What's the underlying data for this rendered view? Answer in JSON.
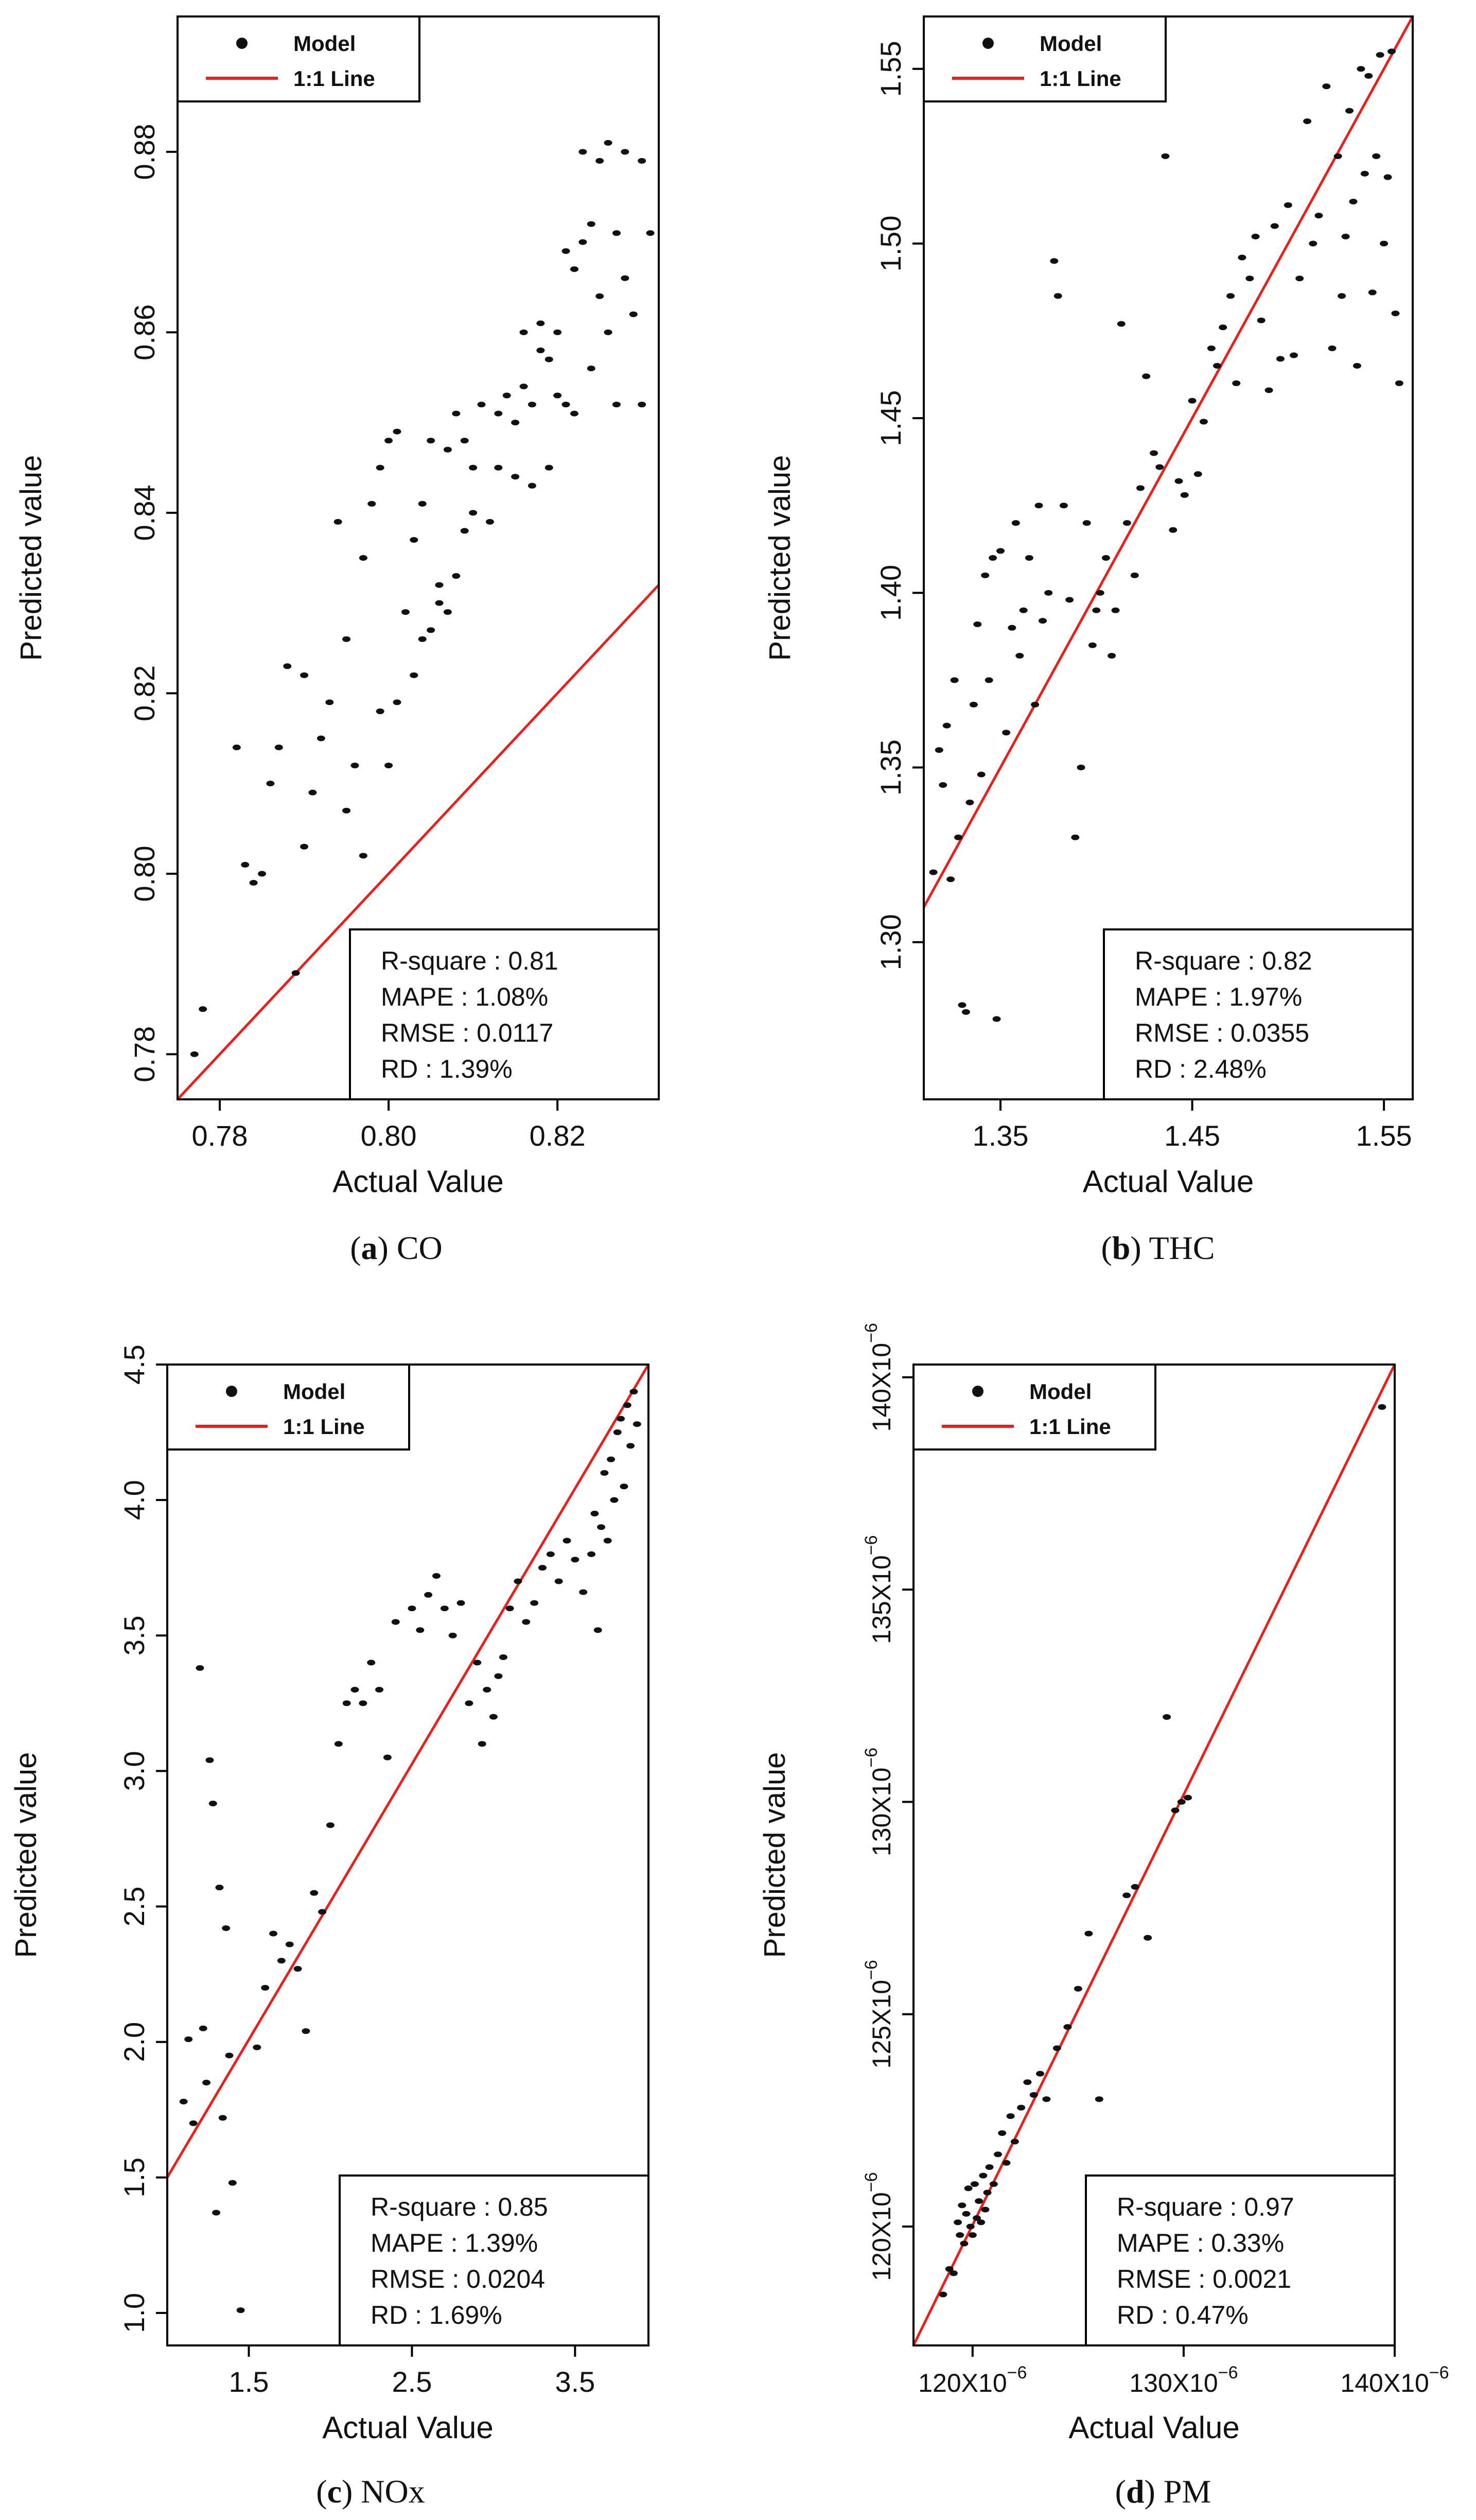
{
  "figure": {
    "colors": {
      "point": "#111111",
      "line": "#e8201c",
      "frame": "#000000",
      "background": "#ffffff"
    }
  },
  "chart_data": [
    {
      "id": "a",
      "type": "scatter",
      "caption_letter": "a",
      "caption_text": " CO",
      "xlabel": "Actual Value",
      "ylabel": "Predicted value",
      "xlim": [
        0.775,
        0.832
      ],
      "ylim": [
        0.775,
        0.895
      ],
      "xticks": [
        0.78,
        0.8,
        0.82
      ],
      "xtick_labels": [
        "0.78",
        "0.80",
        "0.82"
      ],
      "yticks": [
        0.78,
        0.8,
        0.82,
        0.84,
        0.86,
        0.88
      ],
      "ytick_labels": [
        "0.78",
        "0.80",
        "0.82",
        "0.84",
        "0.86",
        "0.88"
      ],
      "legend": {
        "position": "top-left",
        "entries": [
          {
            "label": "Model",
            "kind": "point"
          },
          {
            "label": "1:1 Line",
            "kind": "line"
          }
        ]
      },
      "stats": [
        "R-square : 0.81",
        "MAPE : 1.08%",
        "RMSE : 0.0117",
        "RD : 1.39%"
      ],
      "series": [
        {
          "name": "1:1 Line",
          "kind": "line",
          "x": [
            0.775,
            0.832
          ],
          "y": [
            0.775,
            0.832
          ]
        },
        {
          "name": "Model",
          "kind": "scatter",
          "x": [
            0.777,
            0.778,
            0.782,
            0.783,
            0.784,
            0.785,
            0.786,
            0.787,
            0.788,
            0.789,
            0.79,
            0.79,
            0.791,
            0.792,
            0.793,
            0.794,
            0.795,
            0.795,
            0.796,
            0.797,
            0.797,
            0.798,
            0.799,
            0.799,
            0.8,
            0.8,
            0.801,
            0.801,
            0.802,
            0.803,
            0.803,
            0.804,
            0.804,
            0.805,
            0.805,
            0.806,
            0.806,
            0.807,
            0.807,
            0.808,
            0.808,
            0.809,
            0.809,
            0.81,
            0.81,
            0.811,
            0.812,
            0.813,
            0.813,
            0.814,
            0.815,
            0.815,
            0.816,
            0.816,
            0.817,
            0.817,
            0.818,
            0.818,
            0.819,
            0.819,
            0.82,
            0.82,
            0.821,
            0.821,
            0.822,
            0.822,
            0.823,
            0.823,
            0.824,
            0.824,
            0.825,
            0.825,
            0.826,
            0.826,
            0.827,
            0.827,
            0.828,
            0.828,
            0.829,
            0.83,
            0.83,
            0.831
          ],
          "y": [
            0.78,
            0.785,
            0.814,
            0.801,
            0.799,
            0.8,
            0.81,
            0.814,
            0.823,
            0.789,
            0.803,
            0.822,
            0.809,
            0.815,
            0.819,
            0.839,
            0.807,
            0.826,
            0.812,
            0.802,
            0.835,
            0.841,
            0.818,
            0.845,
            0.812,
            0.848,
            0.819,
            0.849,
            0.829,
            0.822,
            0.837,
            0.826,
            0.841,
            0.827,
            0.848,
            0.83,
            0.832,
            0.829,
            0.847,
            0.833,
            0.851,
            0.838,
            0.848,
            0.84,
            0.845,
            0.852,
            0.839,
            0.845,
            0.851,
            0.853,
            0.844,
            0.85,
            0.854,
            0.86,
            0.843,
            0.852,
            0.858,
            0.861,
            0.857,
            0.845,
            0.86,
            0.853,
            0.852,
            0.869,
            0.851,
            0.867,
            0.88,
            0.87,
            0.856,
            0.872,
            0.879,
            0.864,
            0.86,
            0.881,
            0.871,
            0.852,
            0.88,
            0.866,
            0.862,
            0.879,
            0.852,
            0.871
          ]
        }
      ]
    },
    {
      "id": "b",
      "type": "scatter",
      "caption_letter": "b",
      "caption_text": " THC",
      "xlabel": "Actual Value",
      "ylabel": "Predicted value",
      "xlim": [
        1.31,
        1.565
      ],
      "ylim": [
        1.255,
        1.565
      ],
      "xticks": [
        1.35,
        1.45,
        1.55
      ],
      "xtick_labels": [
        "1.35",
        "1.45",
        "1.55"
      ],
      "yticks": [
        1.3,
        1.35,
        1.4,
        1.45,
        1.5,
        1.55
      ],
      "ytick_labels": [
        "1.30",
        "1.35",
        "1.40",
        "1.45",
        "1.50",
        "1.55"
      ],
      "legend": {
        "position": "top-left",
        "entries": [
          {
            "label": "Model",
            "kind": "point"
          },
          {
            "label": "1:1 Line",
            "kind": "line"
          }
        ]
      },
      "stats": [
        "R-square : 0.82",
        "MAPE : 1.97%",
        "RMSE : 0.0355",
        "RD : 2.48%"
      ],
      "series": [
        {
          "name": "1:1 Line",
          "kind": "line",
          "x": [
            1.31,
            1.565
          ],
          "y": [
            1.31,
            1.565
          ]
        },
        {
          "name": "Model",
          "kind": "scatter",
          "x": [
            1.315,
            1.318,
            1.32,
            1.322,
            1.324,
            1.326,
            1.328,
            1.33,
            1.332,
            1.334,
            1.336,
            1.338,
            1.34,
            1.342,
            1.344,
            1.346,
            1.348,
            1.35,
            1.353,
            1.356,
            1.358,
            1.36,
            1.362,
            1.365,
            1.368,
            1.37,
            1.372,
            1.375,
            1.378,
            1.38,
            1.383,
            1.386,
            1.389,
            1.392,
            1.395,
            1.398,
            1.4,
            1.402,
            1.405,
            1.408,
            1.41,
            1.413,
            1.416,
            1.42,
            1.423,
            1.426,
            1.43,
            1.433,
            1.436,
            1.44,
            1.443,
            1.446,
            1.45,
            1.453,
            1.456,
            1.46,
            1.463,
            1.466,
            1.47,
            1.473,
            1.476,
            1.48,
            1.483,
            1.486,
            1.49,
            1.493,
            1.496,
            1.5,
            1.503,
            1.506,
            1.51,
            1.513,
            1.516,
            1.52,
            1.523,
            1.526,
            1.528,
            1.53,
            1.532,
            1.534,
            1.536,
            1.538,
            1.54,
            1.542,
            1.544,
            1.546,
            1.548,
            1.55,
            1.552,
            1.554,
            1.556,
            1.558
          ],
          "y": [
            1.32,
            1.355,
            1.345,
            1.362,
            1.318,
            1.375,
            1.33,
            1.282,
            1.28,
            1.34,
            1.368,
            1.391,
            1.348,
            1.405,
            1.375,
            1.41,
            1.278,
            1.412,
            1.36,
            1.39,
            1.42,
            1.382,
            1.395,
            1.41,
            1.368,
            1.425,
            1.392,
            1.4,
            1.495,
            1.485,
            1.425,
            1.398,
            1.33,
            1.35,
            1.42,
            1.385,
            1.395,
            1.4,
            1.41,
            1.382,
            1.395,
            1.477,
            1.42,
            1.405,
            1.43,
            1.462,
            1.44,
            1.436,
            1.525,
            1.418,
            1.432,
            1.428,
            1.455,
            1.434,
            1.449,
            1.47,
            1.465,
            1.476,
            1.485,
            1.46,
            1.496,
            1.49,
            1.502,
            1.478,
            1.458,
            1.505,
            1.467,
            1.511,
            1.468,
            1.49,
            1.535,
            1.5,
            1.508,
            1.545,
            1.47,
            1.525,
            1.485,
            1.502,
            1.538,
            1.512,
            1.465,
            1.55,
            1.52,
            1.548,
            1.486,
            1.525,
            1.554,
            1.5,
            1.519,
            1.555,
            1.48,
            1.46
          ]
        }
      ]
    },
    {
      "id": "c",
      "type": "scatter",
      "caption_letter": "c",
      "caption_text": " NOx",
      "xlabel": "Actual Value",
      "ylabel": "Predicted value",
      "xlim": [
        1.0,
        3.95
      ],
      "ylim": [
        0.88,
        4.5
      ],
      "xticks": [
        1.5,
        2.5,
        3.5
      ],
      "xtick_labels": [
        "1.5",
        "2.5",
        "3.5"
      ],
      "yticks": [
        1.0,
        1.5,
        2.0,
        2.5,
        3.0,
        3.5,
        4.0,
        4.5
      ],
      "ytick_labels": [
        "1.0",
        "1.5",
        "2.0",
        "2.5",
        "3.0",
        "3.5",
        "4.0",
        "4.5"
      ],
      "legend": {
        "position": "top-left",
        "entries": [
          {
            "label": "Model",
            "kind": "point"
          },
          {
            "label": "1:1 Line",
            "kind": "line"
          }
        ]
      },
      "stats": [
        "R-square : 0.85",
        "MAPE : 1.39%",
        "RMSE : 0.0204",
        "RD : 1.69%"
      ],
      "series": [
        {
          "name": "1:1 Line",
          "kind": "line",
          "x": [
            1.0,
            3.95
          ],
          "y": [
            1.5,
            4.5
          ]
        },
        {
          "name": "Model",
          "kind": "scatter",
          "x": [
            1.1,
            1.13,
            1.16,
            1.2,
            1.22,
            1.24,
            1.26,
            1.28,
            1.3,
            1.32,
            1.34,
            1.36,
            1.38,
            1.4,
            1.45,
            1.55,
            1.6,
            1.65,
            1.7,
            1.75,
            1.8,
            1.85,
            1.9,
            1.95,
            2.0,
            2.05,
            2.1,
            2.15,
            2.2,
            2.25,
            2.3,
            2.35,
            2.4,
            2.5,
            2.55,
            2.6,
            2.65,
            2.7,
            2.75,
            2.8,
            2.85,
            2.9,
            2.93,
            2.96,
            3.0,
            3.03,
            3.06,
            3.1,
            3.15,
            3.2,
            3.25,
            3.3,
            3.35,
            3.4,
            3.45,
            3.5,
            3.55,
            3.6,
            3.62,
            3.64,
            3.66,
            3.68,
            3.7,
            3.72,
            3.74,
            3.76,
            3.78,
            3.8,
            3.82,
            3.84,
            3.86,
            3.88
          ],
          "y": [
            1.78,
            2.01,
            1.7,
            3.38,
            2.05,
            1.85,
            3.04,
            2.88,
            1.37,
            2.57,
            1.72,
            2.42,
            1.95,
            1.48,
            1.01,
            1.98,
            2.2,
            2.4,
            2.3,
            2.36,
            2.27,
            2.04,
            2.55,
            2.48,
            2.8,
            3.1,
            3.25,
            3.3,
            3.25,
            3.4,
            3.3,
            3.05,
            3.55,
            3.6,
            3.52,
            3.65,
            3.72,
            3.6,
            3.5,
            3.62,
            3.25,
            3.4,
            3.1,
            3.3,
            3.2,
            3.35,
            3.42,
            3.6,
            3.7,
            3.55,
            3.62,
            3.75,
            3.8,
            3.7,
            3.85,
            3.78,
            3.66,
            3.8,
            3.95,
            3.52,
            3.9,
            4.1,
            3.85,
            4.15,
            4.0,
            4.25,
            4.3,
            4.05,
            4.35,
            4.2,
            4.4,
            4.28
          ]
        }
      ]
    },
    {
      "id": "d",
      "type": "scatter",
      "caption_letter": "d",
      "caption_text": " PM",
      "xlabel": "Actual Value",
      "ylabel": "Predicted value",
      "xlim": [
        117.2,
        140.0
      ],
      "ylim": [
        117.2,
        140.3
      ],
      "xticks": [
        120,
        130,
        140
      ],
      "xtick_labels": [
        "120X10",
        "130X10",
        "140X10"
      ],
      "xtick_exponent": "−6",
      "yticks": [
        120,
        125,
        130,
        135,
        140
      ],
      "ytick_labels": [
        "120X10",
        "125X10",
        "130X10",
        "135X10",
        "140X10"
      ],
      "ytick_exponent": "−6",
      "legend": {
        "position": "top-left",
        "entries": [
          {
            "label": "Model",
            "kind": "point"
          },
          {
            "label": "1:1 Line",
            "kind": "line"
          }
        ]
      },
      "stats": [
        "R-square : 0.97",
        "MAPE : 0.33%",
        "RMSE : 0.0021",
        "RD : 0.47%"
      ],
      "series": [
        {
          "name": "1:1 Line",
          "kind": "line",
          "x": [
            117.2,
            140.0
          ],
          "y": [
            117.2,
            140.3
          ]
        },
        {
          "name": "Model",
          "kind": "scatter",
          "x": [
            118.6,
            118.9,
            119.1,
            119.3,
            119.4,
            119.5,
            119.6,
            119.7,
            119.8,
            119.9,
            120.0,
            120.1,
            120.2,
            120.3,
            120.4,
            120.5,
            120.6,
            120.7,
            120.8,
            121.0,
            121.2,
            121.4,
            121.6,
            121.8,
            122.0,
            122.3,
            122.6,
            122.9,
            123.2,
            123.5,
            124.0,
            124.5,
            125.0,
            125.5,
            126.0,
            127.3,
            127.7,
            128.3,
            129.2,
            129.6,
            129.9,
            130.2,
            139.4
          ],
          "y": [
            118.4,
            119.0,
            118.9,
            120.1,
            119.8,
            120.5,
            119.6,
            120.3,
            120.9,
            120.0,
            119.8,
            121.0,
            120.2,
            120.6,
            120.1,
            121.2,
            120.4,
            120.8,
            121.4,
            121.0,
            121.7,
            122.2,
            121.5,
            122.6,
            122.0,
            122.8,
            123.4,
            123.1,
            123.6,
            123.0,
            124.2,
            124.7,
            125.6,
            126.9,
            123.0,
            127.8,
            128.0,
            126.8,
            132.0,
            129.8,
            130.0,
            130.1,
            139.3
          ]
        }
      ]
    }
  ]
}
